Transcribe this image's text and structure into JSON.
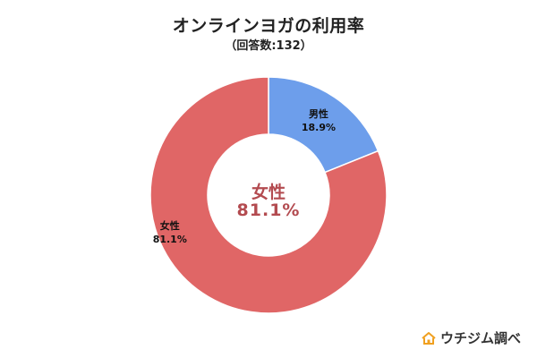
{
  "chart_data": {
    "type": "pie",
    "title": "オンラインヨガの利用率",
    "subtitle": "（回答数:132）",
    "categories": [
      "男性",
      "女性"
    ],
    "values": [
      18.9,
      81.1
    ],
    "value_labels": [
      "18.9%",
      "81.1%"
    ],
    "colors": [
      "#6d9eeb",
      "#e06666"
    ],
    "donut": true,
    "start_angle_deg": 0,
    "direction": "clockwise",
    "center_label": {
      "category": "女性",
      "value": "81.1%",
      "color": "#b34b50"
    },
    "legend": "none"
  },
  "brand": {
    "text": "ウチジム調べ",
    "icon": "house-icon",
    "color": "#f0a020"
  }
}
